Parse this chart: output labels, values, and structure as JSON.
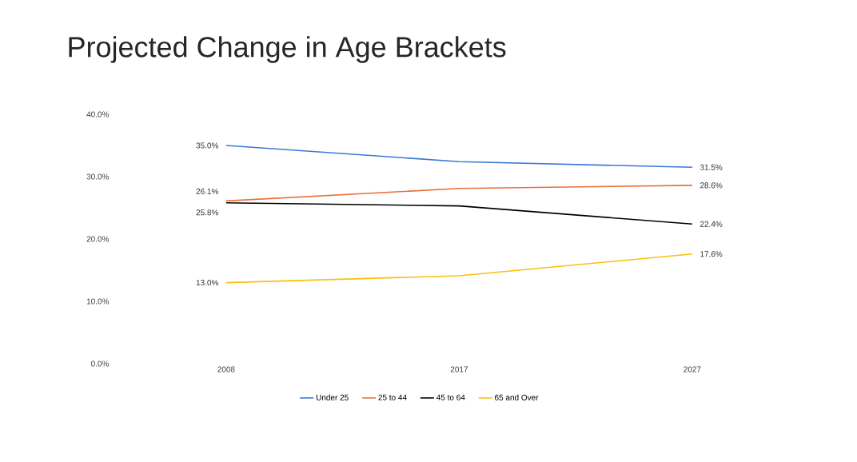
{
  "chart_data": {
    "type": "line",
    "title": "Projected Change in Age Brackets",
    "categories": [
      "2008",
      "2017",
      "2027"
    ],
    "ylim": [
      0,
      40
    ],
    "yticks": [
      {
        "value": 0,
        "label": "0.0%"
      },
      {
        "value": 10,
        "label": "10.0%"
      },
      {
        "value": 20,
        "label": "20.0%"
      },
      {
        "value": 30,
        "label": "30.0%"
      },
      {
        "value": 40,
        "label": "40.0%"
      }
    ],
    "legend": "bottom",
    "series": [
      {
        "name": "Under 25",
        "color": "#3c78d8",
        "values": [
          35.0,
          32.4,
          31.5
        ],
        "value_labels": [
          "35.0%",
          null,
          "31.5%"
        ]
      },
      {
        "name": "25 to 44",
        "color": "#e8703a",
        "values": [
          26.1,
          28.1,
          28.6
        ],
        "value_labels": [
          "26.1%",
          null,
          "28.6%"
        ]
      },
      {
        "name": "45 to 64",
        "color": "#000000",
        "values": [
          25.8,
          25.3,
          22.4
        ],
        "value_labels": [
          "25.8%",
          null,
          "22.4%"
        ]
      },
      {
        "name": "65 and Over",
        "color": "#f9c10c",
        "values": [
          13.0,
          14.1,
          17.6
        ],
        "value_labels": [
          "13.0%",
          null,
          "17.6%"
        ]
      }
    ]
  }
}
